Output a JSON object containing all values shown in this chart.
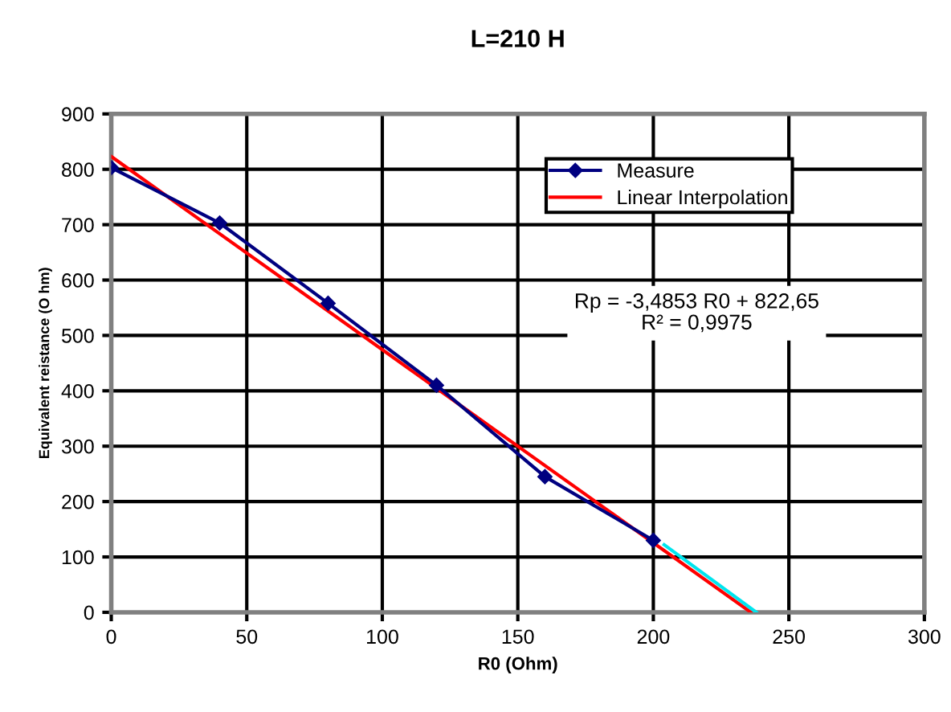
{
  "chart_data": {
    "type": "line",
    "title": "L=210 H",
    "xlabel": "R0 (Ohm)",
    "ylabel": "Equivalent reistance (O hm)",
    "xlim": [
      0,
      300
    ],
    "xticks": [
      0,
      50,
      100,
      150,
      200,
      250,
      300
    ],
    "ylim": [
      0,
      900
    ],
    "yticks": [
      0,
      100,
      200,
      300,
      400,
      500,
      600,
      700,
      800,
      900
    ],
    "grid": true,
    "legend": "top right",
    "line_style": "solid",
    "series": [
      {
        "name": "Measure",
        "color": "#000080",
        "marker": "diamond",
        "x": [
          0,
          40,
          80,
          120,
          160,
          200
        ],
        "values": [
          803,
          703,
          558,
          410,
          245,
          130
        ]
      },
      {
        "color": "#00e5ee",
        "marker": "none",
        "x": [
          204,
          238
        ],
        "values": [
          122,
          0
        ]
      },
      {
        "name": "Linear Interpolation",
        "color": "#ff0000",
        "marker": "none",
        "x": [
          0,
          236
        ],
        "values": [
          823,
          0
        ]
      }
    ],
    "annotations": [
      "Rp = -3,4853 R0 + 822,65\nR² = 0,9975"
    ]
  }
}
